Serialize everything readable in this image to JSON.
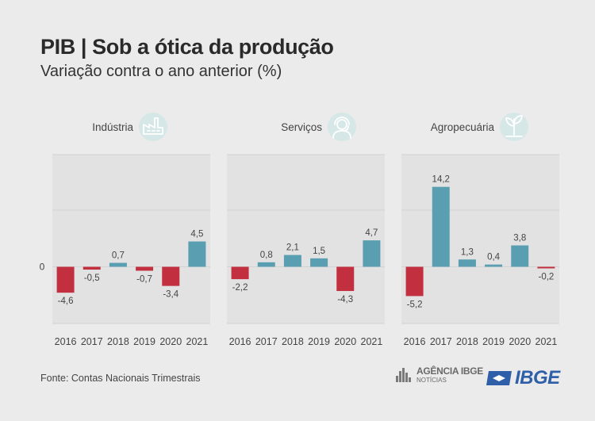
{
  "title": "PIB | Sob a ótica da produção",
  "subtitle": "Variação contra o ano anterior (%)",
  "source": "Fonte: Contas Nacionais Trimestrais",
  "logos": {
    "agencia_name": "AGÊNCIA IBGE",
    "agencia_sub": "NOTÍCIAS",
    "ibge": "IBGE"
  },
  "colors": {
    "positive": "#5a9fb1",
    "negative": "#c2303f",
    "panel_bg": "#e2e2e2",
    "icon_circle": "#d5e7e6"
  },
  "chart_data": [
    {
      "type": "bar",
      "title": "Indústria",
      "icon": "factory-icon",
      "categories": [
        "2016",
        "2017",
        "2018",
        "2019",
        "2020",
        "2021"
      ],
      "values": [
        -4.6,
        -0.5,
        0.7,
        -0.7,
        -3.4,
        4.5
      ],
      "value_labels": [
        "-4,6",
        "-0,5",
        "0,7",
        "-0,7",
        "-3,4",
        "4,5"
      ],
      "zero_label": "0"
    },
    {
      "type": "bar",
      "title": "Serviços",
      "icon": "headset-agent-icon",
      "categories": [
        "2016",
        "2017",
        "2018",
        "2019",
        "2020",
        "2021"
      ],
      "values": [
        -2.2,
        0.8,
        2.1,
        1.5,
        -4.3,
        4.7
      ],
      "value_labels": [
        "-2,2",
        "0,8",
        "2,1",
        "1,5",
        "-4,3",
        "4,7"
      ]
    },
    {
      "type": "bar",
      "title": "Agropecuária",
      "icon": "plant-icon",
      "categories": [
        "2016",
        "2017",
        "2018",
        "2019",
        "2020",
        "2021"
      ],
      "values": [
        -5.2,
        14.2,
        1.3,
        0.4,
        3.8,
        -0.2
      ],
      "value_labels": [
        "-5,2",
        "14,2",
        "1,3",
        "0,4",
        "3,8",
        "-0,2"
      ]
    }
  ]
}
